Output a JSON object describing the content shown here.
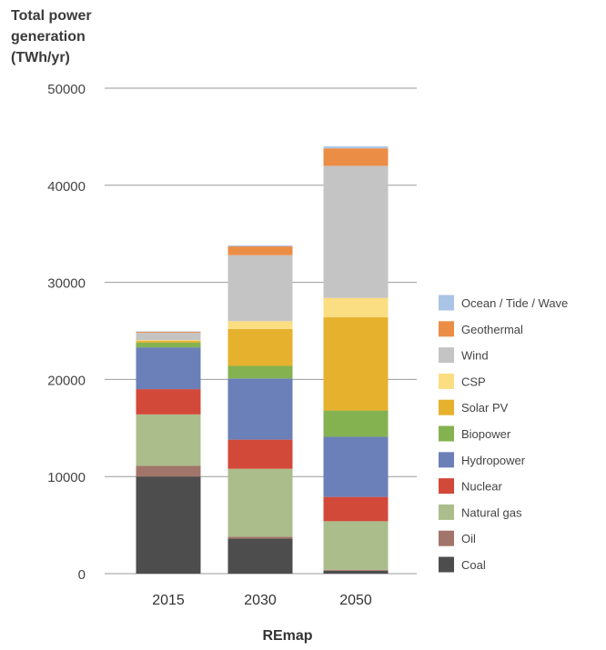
{
  "chart_data": {
    "type": "bar",
    "stacked": true,
    "title": "",
    "ylabel": [
      "Total power",
      "generation",
      "(TWh/yr)"
    ],
    "xlabel": "REmap",
    "yticks": [
      "0",
      "10000",
      "20000",
      "30000",
      "40000",
      "50000"
    ],
    "ylim": [
      0,
      50000
    ],
    "grid": true,
    "legend_position": "right",
    "categories": [
      "2015",
      "2030",
      "2050"
    ],
    "series": [
      {
        "name": "Coal",
        "color": "#4d4d4d",
        "values": [
          10000,
          3600,
          300
        ]
      },
      {
        "name": "Oil",
        "color": "#a1756a",
        "values": [
          1100,
          200,
          100
        ]
      },
      {
        "name": "Natural gas",
        "color": "#abbd8b",
        "values": [
          5300,
          7000,
          5000
        ]
      },
      {
        "name": "Nuclear",
        "color": "#d2493a",
        "values": [
          2600,
          3000,
          2500
        ]
      },
      {
        "name": "Hydropower",
        "color": "#6b7fb8",
        "values": [
          4300,
          6300,
          6200
        ]
      },
      {
        "name": "Biopower",
        "color": "#84b250",
        "values": [
          500,
          1300,
          2700
        ]
      },
      {
        "name": "Solar PV",
        "color": "#e6b12d",
        "values": [
          200,
          3800,
          9600
        ]
      },
      {
        "name": "CSP",
        "color": "#fbde81",
        "values": [
          50,
          800,
          2000
        ]
      },
      {
        "name": "Wind",
        "color": "#c4c4c4",
        "values": [
          750,
          6800,
          13600
        ]
      },
      {
        "name": "Geothermal",
        "color": "#ec8d45",
        "values": [
          100,
          900,
          1800
        ]
      },
      {
        "name": "Ocean / Tide / Wave",
        "color": "#a9c4e4",
        "values": [
          50,
          100,
          200
        ]
      }
    ]
  }
}
